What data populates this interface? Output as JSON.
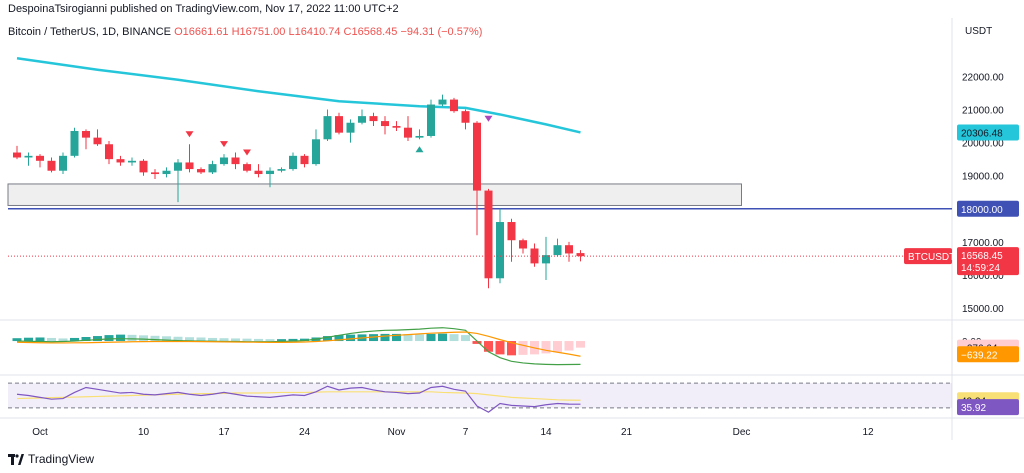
{
  "header": {
    "published": "DespoinaTsirogianni published on TradingView.com, Nov 17, 2022 11:00 UTC+2"
  },
  "legend": {
    "symbol": "Bitcoin / TetherUS, 1D, BINANCE",
    "open": "O16661.61",
    "high": "H16751.00",
    "low": "L16410.74",
    "close": "C16568.45",
    "change": "−94.31 (−0.57%)"
  },
  "currency": "USDT",
  "footer": {
    "brand": "TradingView"
  },
  "colors": {
    "up": "#26a69a",
    "down": "#f23645",
    "ma": "#26c6da",
    "support": "#3f51b5",
    "macd": "#ff9800",
    "signal": "#43a047",
    "rsi": "#7e57c2",
    "rsi_ma": "#f9e076"
  },
  "chart_data": [
    {
      "type": "candlestick",
      "title": "Bitcoin / TetherUS, 1D, BINANCE",
      "ylim": [
        14700,
        23100
      ],
      "yticks": [
        "22000.00",
        "21000.00",
        "20000.00",
        "19000.00",
        "18000.00",
        "17000.00",
        "16000.00",
        "15000.00"
      ],
      "xticks": [
        "Oct",
        "10",
        "17",
        "24",
        "Nov",
        "7",
        "14",
        "21",
        "Dec",
        "12"
      ],
      "candles": [
        {
          "date": "2022-09-29",
          "o": 19700,
          "h": 19900,
          "l": 19500,
          "c": 19550
        },
        {
          "date": "2022-09-30",
          "o": 19550,
          "h": 19700,
          "l": 19300,
          "c": 19600
        },
        {
          "date": "2022-10-01",
          "o": 19600,
          "h": 19650,
          "l": 19250,
          "c": 19450
        },
        {
          "date": "2022-10-02",
          "o": 19450,
          "h": 19550,
          "l": 19100,
          "c": 19150
        },
        {
          "date": "2022-10-03",
          "o": 19150,
          "h": 19700,
          "l": 19050,
          "c": 19600
        },
        {
          "date": "2022-10-04",
          "o": 19600,
          "h": 20450,
          "l": 19550,
          "c": 20350
        },
        {
          "date": "2022-10-05",
          "o": 20350,
          "h": 20400,
          "l": 19800,
          "c": 20150
        },
        {
          "date": "2022-10-06",
          "o": 20150,
          "h": 20400,
          "l": 19900,
          "c": 19950
        },
        {
          "date": "2022-10-07",
          "o": 19950,
          "h": 20050,
          "l": 19350,
          "c": 19500
        },
        {
          "date": "2022-10-08",
          "o": 19500,
          "h": 19600,
          "l": 19300,
          "c": 19400
        },
        {
          "date": "2022-10-09",
          "o": 19400,
          "h": 19550,
          "l": 19300,
          "c": 19450
        },
        {
          "date": "2022-10-10",
          "o": 19450,
          "h": 19500,
          "l": 19000,
          "c": 19100
        },
        {
          "date": "2022-10-11",
          "o": 19100,
          "h": 19200,
          "l": 18900,
          "c": 19050
        },
        {
          "date": "2022-10-12",
          "o": 19050,
          "h": 19250,
          "l": 18950,
          "c": 19150
        },
        {
          "date": "2022-10-13",
          "o": 19150,
          "h": 19500,
          "l": 18200,
          "c": 19400
        },
        {
          "date": "2022-10-14",
          "o": 19400,
          "h": 19950,
          "l": 19100,
          "c": 19200
        },
        {
          "date": "2022-10-15",
          "o": 19200,
          "h": 19250,
          "l": 19050,
          "c": 19100
        },
        {
          "date": "2022-10-16",
          "o": 19100,
          "h": 19450,
          "l": 19050,
          "c": 19350
        },
        {
          "date": "2022-10-17",
          "o": 19350,
          "h": 19650,
          "l": 19300,
          "c": 19550
        },
        {
          "date": "2022-10-18",
          "o": 19550,
          "h": 19700,
          "l": 19200,
          "c": 19350
        },
        {
          "date": "2022-10-19",
          "o": 19350,
          "h": 19400,
          "l": 19100,
          "c": 19150
        },
        {
          "date": "2022-10-20",
          "o": 19150,
          "h": 19350,
          "l": 18950,
          "c": 19050
        },
        {
          "date": "2022-10-21",
          "o": 19050,
          "h": 19250,
          "l": 18650,
          "c": 19150
        },
        {
          "date": "2022-10-22",
          "o": 19150,
          "h": 19250,
          "l": 19100,
          "c": 19200
        },
        {
          "date": "2022-10-23",
          "o": 19200,
          "h": 19700,
          "l": 19150,
          "c": 19600
        },
        {
          "date": "2022-10-24",
          "o": 19600,
          "h": 19650,
          "l": 19250,
          "c": 19350
        },
        {
          "date": "2022-10-25",
          "o": 19350,
          "h": 20400,
          "l": 19300,
          "c": 20100
        },
        {
          "date": "2022-10-26",
          "o": 20100,
          "h": 21000,
          "l": 20050,
          "c": 20800
        },
        {
          "date": "2022-10-27",
          "o": 20800,
          "h": 20900,
          "l": 20250,
          "c": 20300
        },
        {
          "date": "2022-10-28",
          "o": 20300,
          "h": 20700,
          "l": 20000,
          "c": 20600
        },
        {
          "date": "2022-10-29",
          "o": 20600,
          "h": 21000,
          "l": 20550,
          "c": 20800
        },
        {
          "date": "2022-10-30",
          "o": 20800,
          "h": 20900,
          "l": 20500,
          "c": 20650
        },
        {
          "date": "2022-10-31",
          "o": 20650,
          "h": 20800,
          "l": 20250,
          "c": 20500
        },
        {
          "date": "2022-11-01",
          "o": 20500,
          "h": 20650,
          "l": 20350,
          "c": 20450
        },
        {
          "date": "2022-11-02",
          "o": 20450,
          "h": 20800,
          "l": 20050,
          "c": 20150
        },
        {
          "date": "2022-11-03",
          "o": 20150,
          "h": 20400,
          "l": 20100,
          "c": 20200
        },
        {
          "date": "2022-11-04",
          "o": 20200,
          "h": 21300,
          "l": 20150,
          "c": 21150
        },
        {
          "date": "2022-11-05",
          "o": 21150,
          "h": 21450,
          "l": 21100,
          "c": 21300
        },
        {
          "date": "2022-11-06",
          "o": 21300,
          "h": 21350,
          "l": 20900,
          "c": 20950
        },
        {
          "date": "2022-11-07",
          "o": 20950,
          "h": 21000,
          "l": 20400,
          "c": 20600
        },
        {
          "date": "2022-11-08",
          "o": 20600,
          "h": 20650,
          "l": 17200,
          "c": 18550
        },
        {
          "date": "2022-11-09",
          "o": 18550,
          "h": 18600,
          "l": 15600,
          "c": 15900
        },
        {
          "date": "2022-11-10",
          "o": 15900,
          "h": 18000,
          "l": 15750,
          "c": 17600
        },
        {
          "date": "2022-11-11",
          "o": 17600,
          "h": 17700,
          "l": 16400,
          "c": 17050
        },
        {
          "date": "2022-11-12",
          "o": 17050,
          "h": 17100,
          "l": 16650,
          "c": 16800
        },
        {
          "date": "2022-11-13",
          "o": 16800,
          "h": 16950,
          "l": 16250,
          "c": 16350
        },
        {
          "date": "2022-11-14",
          "o": 16350,
          "h": 17150,
          "l": 15850,
          "c": 16600
        },
        {
          "date": "2022-11-15",
          "o": 16600,
          "h": 17100,
          "l": 16550,
          "c": 16900
        },
        {
          "date": "2022-11-16",
          "o": 16900,
          "h": 17000,
          "l": 16400,
          "c": 16650
        },
        {
          "date": "2022-11-17",
          "o": 16661.61,
          "h": 16751.0,
          "l": 16410.74,
          "c": 16568.45
        }
      ],
      "moving_average": {
        "last_value": 20306.48,
        "points": [
          [
            "2022-09-29",
            22550
          ],
          [
            "2022-10-06",
            22200
          ],
          [
            "2022-10-13",
            21900
          ],
          [
            "2022-10-20",
            21550
          ],
          [
            "2022-10-27",
            21250
          ],
          [
            "2022-11-03",
            21100
          ],
          [
            "2022-11-07",
            21050
          ],
          [
            "2022-11-10",
            20850
          ],
          [
            "2022-11-14",
            20550
          ],
          [
            "2022-11-17",
            20306.48
          ]
        ]
      },
      "resistance_zone": {
        "from": "2022-09-29",
        "to": "2022-12-01",
        "low": 18100,
        "high": 18750
      },
      "support_line": {
        "value": 18000,
        "label": "18000.00"
      },
      "markers_down": [
        "2022-10-14",
        "2022-10-17",
        "2022-10-19",
        "2022-11-09"
      ],
      "markers_up": [
        "2022-11-03"
      ],
      "price_labels": {
        "ma": "20306.48",
        "current": "16568.45",
        "symbol": "BTCUSDT",
        "countdown": "14:59:24"
      }
    },
    {
      "type": "macd",
      "ylim": [
        -1300,
        800
      ],
      "yticks": [
        "0.00"
      ],
      "histogram_last": -276.64,
      "signal_last": -639.22,
      "histogram": [
        120,
        140,
        150,
        130,
        110,
        130,
        170,
        210,
        250,
        270,
        260,
        240,
        220,
        200,
        180,
        160,
        150,
        130,
        120,
        110,
        100,
        90,
        80,
        80,
        90,
        100,
        150,
        210,
        250,
        270,
        280,
        290,
        300,
        300,
        290,
        280,
        300,
        310,
        290,
        250,
        -120,
        -450,
        -560,
        -600,
        -580,
        -560,
        -520,
        -470,
        -400,
        -276.64
      ],
      "macd_line": [
        0,
        -10,
        -20,
        -30,
        -20,
        0,
        30,
        60,
        90,
        100,
        90,
        80,
        60,
        40,
        20,
        10,
        0,
        -10,
        -20,
        -20,
        -30,
        -30,
        -30,
        -20,
        0,
        20,
        80,
        160,
        240,
        320,
        380,
        420,
        450,
        460,
        480,
        500,
        540,
        560,
        520,
        450,
        0,
        -450,
        -700,
        -850,
        -920,
        -960,
        -980,
        -990,
        -985,
        -980
      ],
      "signal_line": [
        -50,
        -60,
        -70,
        -80,
        -80,
        -75,
        -70,
        -60,
        -50,
        -40,
        -30,
        -25,
        -20,
        -20,
        -20,
        -20,
        -25,
        -30,
        -35,
        -40,
        -45,
        -50,
        -55,
        -55,
        -50,
        -40,
        -20,
        10,
        50,
        90,
        130,
        170,
        210,
        240,
        270,
        300,
        330,
        350,
        370,
        380,
        320,
        200,
        60,
        -70,
        -180,
        -290,
        -390,
        -470,
        -550,
        -639.22
      ],
      "labels": {
        "histogram": "−276.64",
        "signal": "−639.22"
      }
    },
    {
      "type": "rsi",
      "ylim": [
        20,
        80
      ],
      "band": [
        30,
        70
      ],
      "rsi_last": 35.92,
      "rsi_ma_last": 42.24,
      "rsi": [
        52,
        50,
        47,
        44,
        45,
        55,
        63,
        60,
        57,
        54,
        55,
        52,
        51,
        53,
        55,
        52,
        50,
        52,
        55,
        52,
        49,
        48,
        47,
        49,
        51,
        50,
        56,
        65,
        59,
        62,
        63,
        59,
        56,
        55,
        53,
        54,
        63,
        65,
        60,
        57,
        33,
        23,
        37,
        34,
        33,
        32,
        35,
        37,
        36,
        35.92
      ],
      "rsi_ma": [
        45,
        45.5,
        46,
        46.5,
        47,
        47.5,
        48,
        48.5,
        49,
        49.5,
        50,
        50.5,
        51,
        51.5,
        52,
        52.5,
        53,
        53,
        53.5,
        54,
        54,
        54,
        54.5,
        55,
        55,
        55,
        55.5,
        56,
        56,
        56,
        56,
        56,
        56,
        56,
        56,
        56,
        56,
        55,
        54.5,
        54,
        53,
        51,
        49,
        47,
        46,
        45,
        44,
        43,
        42.5,
        42.24
      ],
      "labels": {
        "rsi_ma": "42.24",
        "rsi": "35.92"
      }
    }
  ]
}
